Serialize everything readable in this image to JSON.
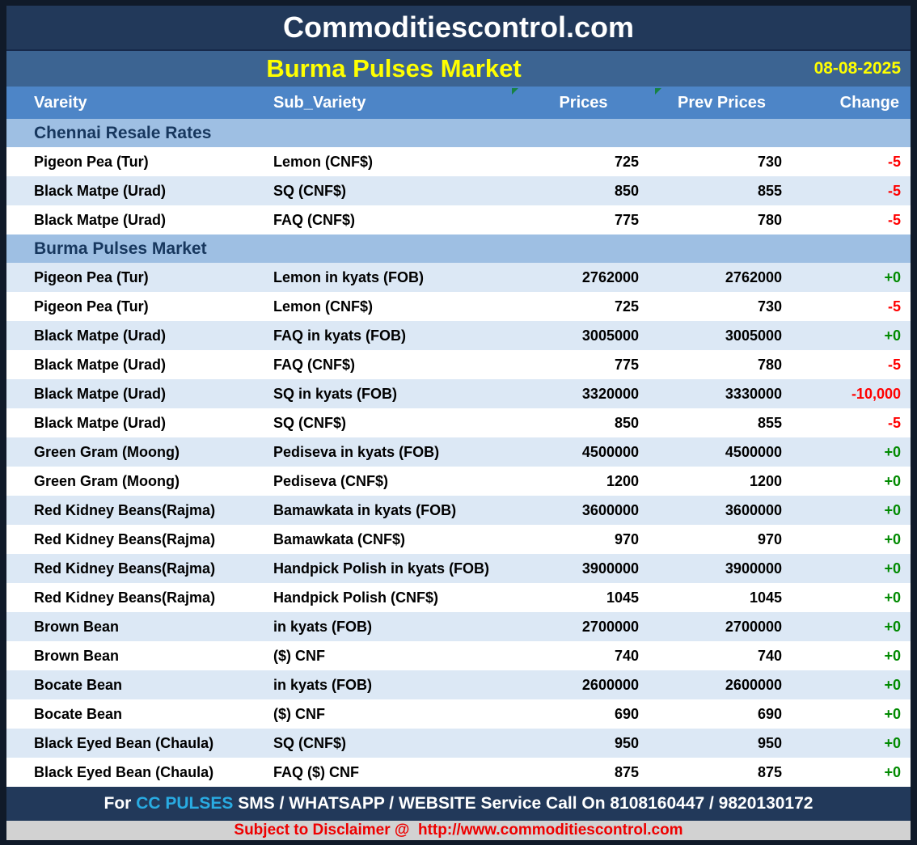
{
  "header": {
    "site_title": "Commoditiescontrol.com",
    "report_title": "Burma Pulses Market",
    "date": "08-08-2025"
  },
  "table": {
    "columns": [
      "Vareity",
      "Sub_Variety",
      "Prices",
      "Prev Prices",
      "Change"
    ],
    "sections": [
      {
        "title": "Chennai Resale Rates",
        "rows": [
          {
            "variety": "Pigeon Pea (Tur)",
            "sub_variety": "Lemon (CNF$)",
            "price": "725",
            "prev_price": "730",
            "change": "-5"
          },
          {
            "variety": "Black Matpe (Urad)",
            "sub_variety": "SQ (CNF$)",
            "price": "850",
            "prev_price": "855",
            "change": "-5"
          },
          {
            "variety": "Black Matpe (Urad)",
            "sub_variety": "FAQ (CNF$)",
            "price": "775",
            "prev_price": "780",
            "change": "-5"
          }
        ]
      },
      {
        "title": "Burma Pulses Market",
        "rows": [
          {
            "variety": "Pigeon Pea (Tur)",
            "sub_variety": "Lemon in kyats (FOB)",
            "price": "2762000",
            "prev_price": "2762000",
            "change": "+0"
          },
          {
            "variety": "Pigeon Pea (Tur)",
            "sub_variety": "Lemon (CNF$)",
            "price": "725",
            "prev_price": "730",
            "change": "-5"
          },
          {
            "variety": "Black Matpe (Urad)",
            "sub_variety": "FAQ in kyats (FOB)",
            "price": "3005000",
            "prev_price": "3005000",
            "change": "+0"
          },
          {
            "variety": "Black Matpe (Urad)",
            "sub_variety": "FAQ (CNF$)",
            "price": "775",
            "prev_price": "780",
            "change": "-5"
          },
          {
            "variety": "Black Matpe (Urad)",
            "sub_variety": "SQ in kyats (FOB)",
            "price": "3320000",
            "prev_price": "3330000",
            "change": "-10,000"
          },
          {
            "variety": "Black Matpe (Urad)",
            "sub_variety": "SQ (CNF$)",
            "price": "850",
            "prev_price": "855",
            "change": "-5"
          },
          {
            "variety": "Green Gram (Moong)",
            "sub_variety": "Pediseva in kyats (FOB)",
            "price": "4500000",
            "prev_price": "4500000",
            "change": "+0"
          },
          {
            "variety": "Green Gram (Moong)",
            "sub_variety": "Pediseva (CNF$)",
            "price": "1200",
            "prev_price": "1200",
            "change": "+0"
          },
          {
            "variety": "Red Kidney Beans(Rajma)",
            "sub_variety": "Bamawkata in kyats (FOB)",
            "price": "3600000",
            "prev_price": "3600000",
            "change": "+0"
          },
          {
            "variety": "Red Kidney Beans(Rajma)",
            "sub_variety": "Bamawkata (CNF$)",
            "price": "970",
            "prev_price": "970",
            "change": "+0"
          },
          {
            "variety": "Red Kidney Beans(Rajma)",
            "sub_variety": "Handpick Polish in kyats (FOB)",
            "price": "3900000",
            "prev_price": "3900000",
            "change": "+0"
          },
          {
            "variety": "Red Kidney Beans(Rajma)",
            "sub_variety": "Handpick Polish (CNF$)",
            "price": "1045",
            "prev_price": "1045",
            "change": "+0"
          },
          {
            "variety": "Brown Bean",
            "sub_variety": "in kyats (FOB)",
            "price": "2700000",
            "prev_price": "2700000",
            "change": "+0"
          },
          {
            "variety": "Brown Bean",
            "sub_variety": "($) CNF",
            "price": "740",
            "prev_price": "740",
            "change": "+0"
          },
          {
            "variety": "Bocate Bean",
            "sub_variety": "in kyats (FOB)",
            "price": "2600000",
            "prev_price": "2600000",
            "change": "+0"
          },
          {
            "variety": "Bocate Bean",
            "sub_variety": "($) CNF",
            "price": "690",
            "prev_price": "690",
            "change": "+0"
          },
          {
            "variety": "Black Eyed Bean (Chaula)",
            "sub_variety": "SQ (CNF$)",
            "price": "950",
            "prev_price": "950",
            "change": "+0"
          },
          {
            "variety": "Black Eyed Bean (Chaula)",
            "sub_variety": "FAQ ($) CNF",
            "price": "875",
            "prev_price": "875",
            "change": "+0"
          }
        ]
      }
    ]
  },
  "footer": {
    "service_prefix": "For ",
    "service_brand": "CC PULSES",
    "service_text": " SMS / WHATSAPP / WEBSITE Service Call On 8108160447 / 9820130172",
    "disclaimer": "Subject to Disclaimer @  http://www.commoditiescontrol.com"
  },
  "colors": {
    "title_bar": "#22395a",
    "subtitle_bar": "#3c6492",
    "header_row": "#4d85c7",
    "section_row": "#9ebfe3",
    "alt_row": "#dce8f5",
    "accent_yellow": "#ffff00",
    "change_negative": "#ff0000",
    "change_positive": "#008a00",
    "brand_cyan": "#29abe2",
    "disclaimer_red": "#ee0000",
    "frame_border": "#101a29"
  }
}
